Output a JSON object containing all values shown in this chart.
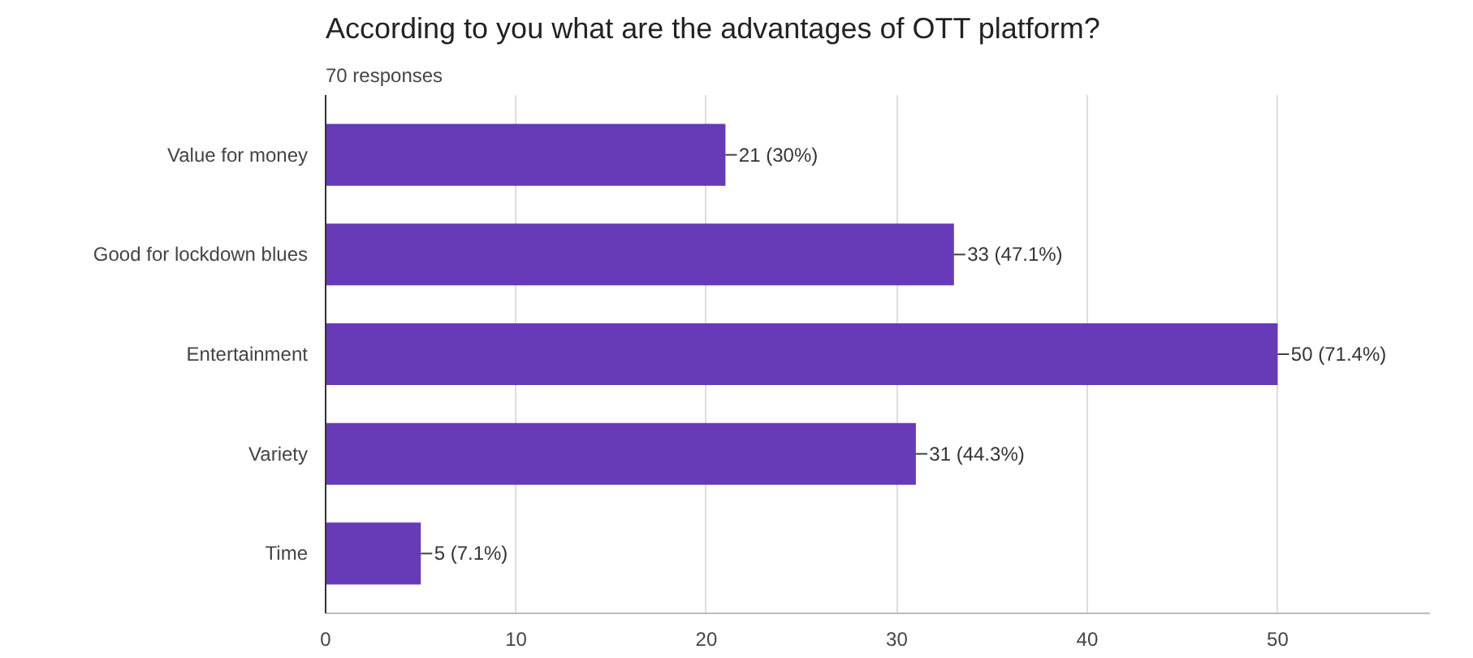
{
  "chart_data": {
    "type": "bar",
    "orientation": "horizontal",
    "title": "According to you what are the advantages of OTT platform?",
    "subtitle": "70 responses",
    "categories": [
      "Value for money",
      "Good for lockdown blues",
      "Entertainment",
      "Variety",
      "Time"
    ],
    "values": [
      21,
      33,
      50,
      31,
      5
    ],
    "value_labels": [
      "21 (30%)",
      "33 (47.1%)",
      "50 (71.4%)",
      "31 (44.3%)",
      "5 (7.1%)"
    ],
    "color": "#673ab7",
    "xlim": [
      0,
      58
    ],
    "xticks": [
      0,
      10,
      20,
      30,
      40,
      50
    ],
    "grid": "x"
  }
}
